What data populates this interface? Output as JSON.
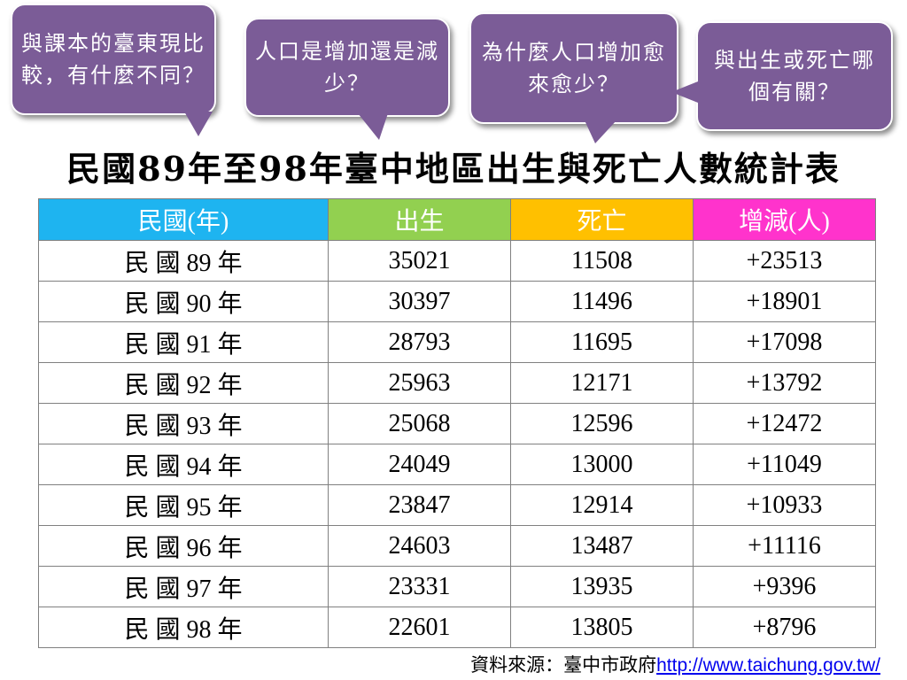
{
  "bubbles": [
    {
      "text": "與課本的臺東現比較，有什麼不同？"
    },
    {
      "text": "人口是增加還是減少？"
    },
    {
      "text": "為什麼人口增加愈來愈少？"
    },
    {
      "text": "與出生或死亡哪個有關？"
    }
  ],
  "bubble_color": "#7b5c97",
  "title": "民國89年至98年臺中地區出生與死亡人數統計表",
  "table": {
    "headers": [
      "民國(年)",
      "出生",
      "死亡",
      "增減(人)"
    ],
    "header_colors": [
      "#1eb4f0",
      "#92d050",
      "#ffc000",
      "#ff33cc"
    ],
    "rows": [
      [
        "民 國 89 年",
        "35021",
        "11508",
        "+23513"
      ],
      [
        "民 國 90 年",
        "30397",
        "11496",
        "+18901"
      ],
      [
        "民 國 91 年",
        "28793",
        "11695",
        "+17098"
      ],
      [
        "民 國 92 年",
        "25963",
        "12171",
        "+13792"
      ],
      [
        "民 國 93 年",
        "25068",
        "12596",
        "+12472"
      ],
      [
        "民 國 94 年",
        "24049",
        "13000",
        "+11049"
      ],
      [
        "民 國 95 年",
        "23847",
        "12914",
        "+10933"
      ],
      [
        "民 國 96 年",
        "24603",
        "13487",
        "+11116"
      ],
      [
        "民 國 97 年",
        "23331",
        "13935",
        "+9396"
      ],
      [
        "民 國 98 年",
        "22601",
        "13805",
        "+8796"
      ]
    ]
  },
  "source": {
    "label": "資料來源：臺中市政府",
    "link": "http://www.taichung.gov.tw/"
  }
}
